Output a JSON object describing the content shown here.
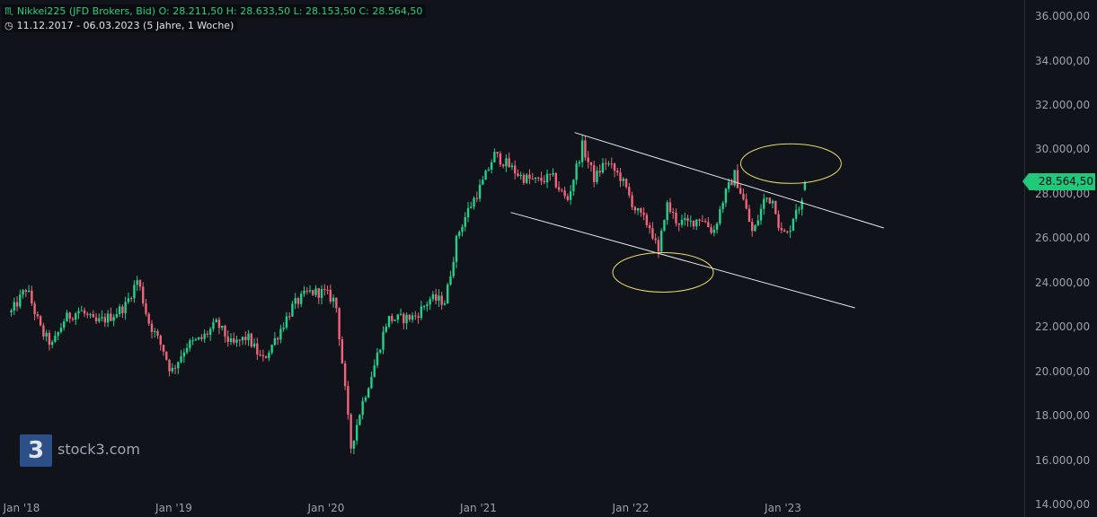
{
  "header": {
    "line1_icon": "candles-icon",
    "line1": "Nikkei225 (JFD Brokers, Bid)  O: 28.211,50  H: 28.633,50  L: 28.153,50  C: 28.564,50",
    "line2_icon": "clock-icon",
    "line2": "11.12.2017 - 06.03.2023   (5 Jahre, 1 Woche)"
  },
  "logo": {
    "mark": "3",
    "text": "stock3.com"
  },
  "price_tag": "28.564,50",
  "colors": {
    "background": "#11131b",
    "up": "#22d18b",
    "down": "#f0657a",
    "channel": "#e8e8e8",
    "highlight": "#e6d96a",
    "price": "#21c87a"
  },
  "chart_data": {
    "type": "candlestick",
    "period": "weekly",
    "ylim": [
      14000,
      36000
    ],
    "yticks": [
      "14.000,00",
      "16.000,00",
      "18.000,00",
      "20.000,00",
      "22.000,00",
      "24.000,00",
      "26.000,00",
      "28.000,00",
      "30.000,00",
      "32.000,00",
      "34.000,00",
      "36.000,00"
    ],
    "xticks": [
      "Jan '18",
      "Jan '19",
      "Jan '20",
      "Jan '21",
      "Jan '22",
      "Jan '23"
    ],
    "last": {
      "open": 28211.5,
      "high": 28633.5,
      "low": 28153.5,
      "close": 28564.5
    },
    "close_path": [
      [
        2017.95,
        22700
      ],
      [
        2018.05,
        23800
      ],
      [
        2018.15,
        21800
      ],
      [
        2018.22,
        21200
      ],
      [
        2018.3,
        22400
      ],
      [
        2018.4,
        22800
      ],
      [
        2018.5,
        22200
      ],
      [
        2018.6,
        22500
      ],
      [
        2018.7,
        23000
      ],
      [
        2018.78,
        24200
      ],
      [
        2018.85,
        22300
      ],
      [
        2018.95,
        21000
      ],
      [
        2019.0,
        20000
      ],
      [
        2019.1,
        21200
      ],
      [
        2019.2,
        21500
      ],
      [
        2019.3,
        22200
      ],
      [
        2019.4,
        21200
      ],
      [
        2019.5,
        21600
      ],
      [
        2019.6,
        20500
      ],
      [
        2019.7,
        21700
      ],
      [
        2019.8,
        23000
      ],
      [
        2019.9,
        23600
      ],
      [
        2020.0,
        23600
      ],
      [
        2020.08,
        23200
      ],
      [
        2020.13,
        20000
      ],
      [
        2020.18,
        16600
      ],
      [
        2020.25,
        18500
      ],
      [
        2020.33,
        20200
      ],
      [
        2020.42,
        22400
      ],
      [
        2020.5,
        22400
      ],
      [
        2020.6,
        22500
      ],
      [
        2020.7,
        23300
      ],
      [
        2020.8,
        23200
      ],
      [
        2020.88,
        26200
      ],
      [
        2020.95,
        27300
      ],
      [
        2021.05,
        28600
      ],
      [
        2021.12,
        29800
      ],
      [
        2021.2,
        29400
      ],
      [
        2021.3,
        28800
      ],
      [
        2021.4,
        28600
      ],
      [
        2021.5,
        28800
      ],
      [
        2021.6,
        27700
      ],
      [
        2021.7,
        30200
      ],
      [
        2021.78,
        28700
      ],
      [
        2021.85,
        29500
      ],
      [
        2021.95,
        28800
      ],
      [
        2022.05,
        27300
      ],
      [
        2022.15,
        26500
      ],
      [
        2022.2,
        25300
      ],
      [
        2022.25,
        27600
      ],
      [
        2022.32,
        26800
      ],
      [
        2022.4,
        26700
      ],
      [
        2022.48,
        27000
      ],
      [
        2022.56,
        26300
      ],
      [
        2022.63,
        27900
      ],
      [
        2022.7,
        28900
      ],
      [
        2022.76,
        27700
      ],
      [
        2022.82,
        26200
      ],
      [
        2022.9,
        27900
      ],
      [
        2022.96,
        27700
      ],
      [
        2023.0,
        26300
      ],
      [
        2023.05,
        26200
      ],
      [
        2023.1,
        27400
      ],
      [
        2023.15,
        27600
      ],
      [
        2023.18,
        28564.5
      ]
    ]
  },
  "annotations": {
    "channel_upper": [
      [
        2021.65,
        30800
      ],
      [
        2023.68,
        26500
      ]
    ],
    "channel_lower": [
      [
        2021.23,
        27200
      ],
      [
        2023.49,
        22900
      ]
    ],
    "ellipse_top": {
      "center": [
        2023.07,
        29400
      ]
    },
    "ellipse_bottom": {
      "center": [
        2022.23,
        24500
      ]
    }
  }
}
